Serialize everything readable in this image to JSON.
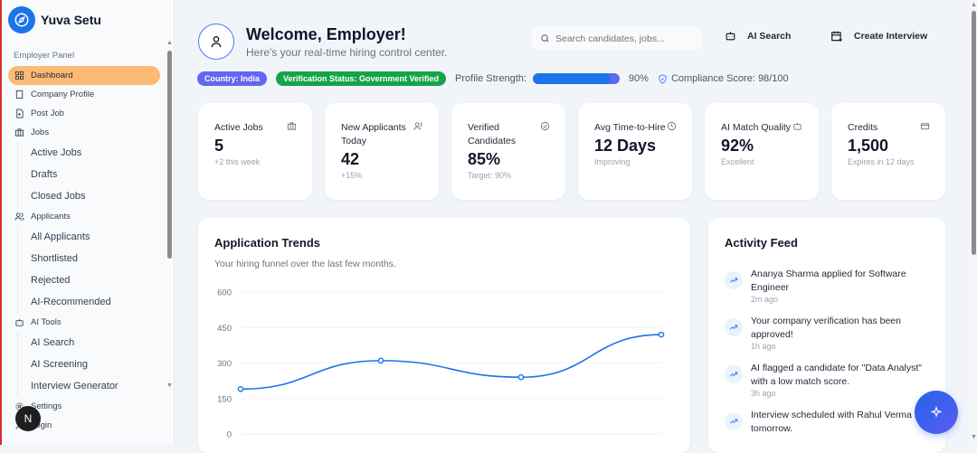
{
  "brand": {
    "name": "Yuva Setu"
  },
  "sidebar": {
    "panel_label": "Employer Panel",
    "items": [
      {
        "label": "Dashboard",
        "icon": "grid-icon",
        "active": true
      },
      {
        "label": "Company Profile",
        "icon": "building-icon"
      },
      {
        "label": "Post Job",
        "icon": "file-plus-icon"
      },
      {
        "label": "Jobs",
        "icon": "briefcase-icon",
        "children": [
          "Active Jobs",
          "Drafts",
          "Closed Jobs"
        ]
      },
      {
        "label": "Applicants",
        "icon": "users-icon",
        "children": [
          "All Applicants",
          "Shortlisted",
          "Rejected",
          "AI-Recommended"
        ]
      },
      {
        "label": "AI Tools",
        "icon": "bot-icon",
        "children": [
          "AI Search",
          "AI Screening",
          "Interview Generator"
        ]
      },
      {
        "label": "Settings",
        "icon": "gear-icon"
      },
      {
        "label": "Login",
        "icon": "user-icon"
      }
    ],
    "n_badge": "N"
  },
  "header": {
    "title": "Welcome, Employer!",
    "subtitle": "Here's your real-time hiring control center.",
    "search_placeholder": "Search candidates, jobs...",
    "ai_search": "AI Search",
    "create_interview": "Create Interview"
  },
  "status": {
    "country": "Country: India",
    "verification": "Verification Status: Government Verified",
    "profile_label": "Profile Strength:",
    "profile_value": "90%",
    "profile_fraction": 0.9,
    "compliance": "Compliance Score: 98/100",
    "colors": {
      "country": "#6366f1",
      "verification": "#16a34a",
      "accent": "#1d74e8"
    }
  },
  "stats": [
    {
      "label": "Active Jobs",
      "value": "5",
      "note": "+2 this week",
      "icon": "briefcase-icon"
    },
    {
      "label": "New Applicants Today",
      "value": "42",
      "note": "+15%",
      "icon": "users-icon"
    },
    {
      "label": "Verified Candidates",
      "value": "85%",
      "note": "Target: 90%",
      "icon": "check-circle-icon"
    },
    {
      "label": "Avg Time-to-Hire",
      "value": "12 Days",
      "note": "Improving",
      "icon": "clock-icon"
    },
    {
      "label": "AI Match Quality",
      "value": "92%",
      "note": "Excellent",
      "icon": "bot-icon"
    },
    {
      "label": "Credits",
      "value": "1,500",
      "note": "Expires in 12 days",
      "icon": "credit-card-icon"
    }
  ],
  "trends": {
    "title": "Application Trends",
    "subtitle": "Your hiring funnel over the last few months."
  },
  "chart_data": {
    "type": "line",
    "yticks": [
      "0",
      "150",
      "300",
      "450",
      "600"
    ],
    "ylim": [
      0,
      600
    ],
    "values": [
      190,
      310,
      240,
      420
    ],
    "grid": true,
    "color": "#1d74e8"
  },
  "activity": {
    "title": "Activity Feed",
    "items": [
      {
        "text": "Ananya Sharma applied for Software Engineer",
        "time": "2m ago"
      },
      {
        "text": "Your company verification has been approved!",
        "time": "1h ago"
      },
      {
        "text": "AI flagged a candidate for \"Data Analyst\" with a low match score.",
        "time": "3h ago"
      },
      {
        "text": "Interview scheduled with Rahul Verma for tomorrow.",
        "time": ""
      }
    ]
  }
}
